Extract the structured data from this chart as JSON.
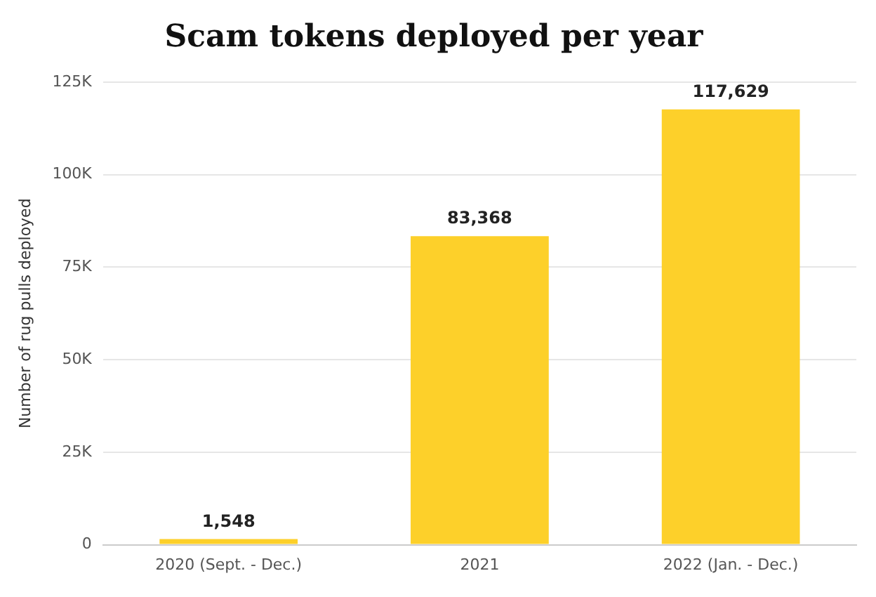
{
  "chart_data": {
    "type": "bar",
    "title": "Scam tokens deployed per year",
    "ylabel": "Number of rug pulls deployed",
    "categories": [
      "2020 (Sept. - Dec.)",
      "2021",
      "2022 (Jan. - Dec.)"
    ],
    "values": [
      1548,
      83368,
      117629
    ],
    "value_labels": [
      "1,548",
      "83,368",
      "117,629"
    ],
    "color": "#fdd02a",
    "ylim": [
      0,
      125000
    ],
    "yticks": [
      0,
      {
        "value": 25000,
        "label": "25K"
      },
      {
        "value": 50000,
        "label": "50K"
      },
      {
        "value": 75000,
        "label": "75K"
      },
      {
        "value": 100000,
        "label": "100K"
      },
      {
        "value": 125000,
        "label": "125K"
      }
    ],
    "grid": "y"
  }
}
